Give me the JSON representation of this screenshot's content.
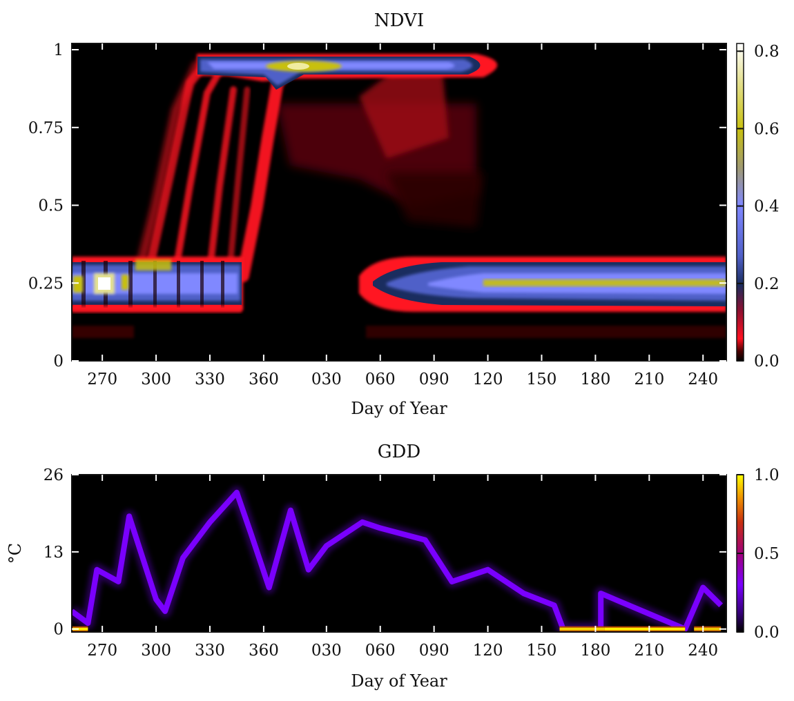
{
  "chart_data": [
    {
      "type": "heatmap",
      "title": "NDVI",
      "xlabel": "Day of Year",
      "ylabel": "",
      "x_ticks": [
        "270",
        "300",
        "330",
        "360",
        "030",
        "060",
        "090",
        "120",
        "150",
        "180",
        "210",
        "240"
      ],
      "y_ticks": [
        {
          "value": 0,
          "label": "0"
        },
        {
          "value": 0.25,
          "label": "0.25"
        },
        {
          "value": 0.5,
          "label": "0.5"
        },
        {
          "value": 0.75,
          "label": "0.75"
        },
        {
          "value": 1,
          "label": "1"
        }
      ],
      "ylim": [
        0,
        1.02
      ],
      "colorbar": {
        "range": [
          0,
          0.82
        ],
        "ticks": [
          {
            "value": 0.0,
            "label": "0.0"
          },
          {
            "value": 0.2,
            "label": "0.2"
          },
          {
            "value": 0.4,
            "label": "0.4"
          },
          {
            "value": 0.6,
            "label": "0.6"
          },
          {
            "value": 0.8,
            "label": "0.8"
          }
        ],
        "colormap": "gist_stern-like"
      },
      "density_bands": [
        {
          "name": "initial low plateau",
          "x_range": [
            "253",
            "345"
          ],
          "ndvi_center": 0.27,
          "peak_density": 0.82
        },
        {
          "name": "green-up ramp",
          "x_range": [
            "285",
            "005"
          ],
          "ndvi_range": [
            0.3,
            0.97
          ],
          "peak_density": 0.1
        },
        {
          "name": "peak plateau",
          "x_range": [
            "320",
            "120"
          ],
          "ndvi_center": 0.95,
          "peak_density": 0.62
        },
        {
          "name": "senescence haze",
          "x_range": [
            "360",
            "090"
          ],
          "ndvi_range": [
            0.5,
            0.9
          ],
          "peak_density": 0.05
        },
        {
          "name": "dormant plateau",
          "x_range": [
            "045",
            "250"
          ],
          "ndvi_center": 0.25,
          "peak_density": 0.58
        },
        {
          "name": "low noise band",
          "x_range": [
            "253",
            "250"
          ],
          "ndvi_center": 0.1,
          "peak_density": 0.03
        }
      ]
    },
    {
      "type": "heatmap",
      "title": "GDD",
      "xlabel": "Day of Year",
      "ylabel": "°C",
      "x_ticks": [
        "270",
        "300",
        "330",
        "360",
        "030",
        "060",
        "090",
        "120",
        "150",
        "180",
        "210",
        "240"
      ],
      "y_ticks": [
        {
          "value": 0,
          "label": "0"
        },
        {
          "value": 13,
          "label": "13"
        },
        {
          "value": 26,
          "label": "26"
        }
      ],
      "ylim": [
        -0.5,
        26
      ],
      "colorbar": {
        "range": [
          0,
          1
        ],
        "ticks": [
          {
            "value": 0.0,
            "label": "0.0"
          },
          {
            "value": 0.5,
            "label": "0.5"
          },
          {
            "value": 1.0,
            "label": "1.0"
          }
        ],
        "colormap": "gnuplot-like"
      },
      "gdd_trace_points": [
        {
          "doy": "253",
          "gdd": 3
        },
        {
          "doy": "262",
          "gdd": 1
        },
        {
          "doy": "267",
          "gdd": 10
        },
        {
          "doy": "279",
          "gdd": 8
        },
        {
          "doy": "285",
          "gdd": 19
        },
        {
          "doy": "300",
          "gdd": 5
        },
        {
          "doy": "305",
          "gdd": 3
        },
        {
          "doy": "315",
          "gdd": 12
        },
        {
          "doy": "330",
          "gdd": 18
        },
        {
          "doy": "345",
          "gdd": 23
        },
        {
          "doy": "353",
          "gdd": 16
        },
        {
          "doy": "363",
          "gdd": 7
        },
        {
          "doy": "010",
          "gdd": 20
        },
        {
          "doy": "020",
          "gdd": 10
        },
        {
          "doy": "030",
          "gdd": 14
        },
        {
          "doy": "050",
          "gdd": 18
        },
        {
          "doy": "060",
          "gdd": 17
        },
        {
          "doy": "085",
          "gdd": 15
        },
        {
          "doy": "100",
          "gdd": 8
        },
        {
          "doy": "120",
          "gdd": 10
        },
        {
          "doy": "140",
          "gdd": 6
        },
        {
          "doy": "157",
          "gdd": 4
        },
        {
          "doy": "162",
          "gdd": 0
        },
        {
          "doy": "183",
          "gdd": 0
        },
        {
          "doy": "183",
          "gdd": 6
        },
        {
          "doy": "230",
          "gdd": 0
        },
        {
          "doy": "240",
          "gdd": 7
        },
        {
          "doy": "250",
          "gdd": 4
        }
      ],
      "zero_segments": [
        {
          "x_range": [
            "253",
            "262"
          ],
          "density": 1.0
        },
        {
          "x_range": [
            "160",
            "185"
          ],
          "density": 0.85
        },
        {
          "x_range": [
            "185",
            "230"
          ],
          "density": 1.0
        },
        {
          "x_range": [
            "235",
            "250"
          ],
          "density": 0.8
        }
      ]
    }
  ]
}
